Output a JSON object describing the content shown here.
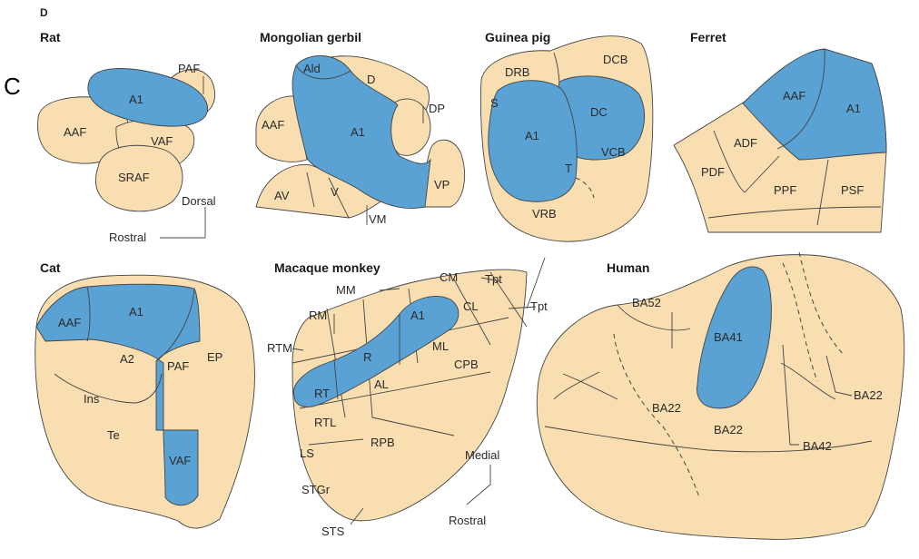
{
  "panel": {
    "letter": "C",
    "top_letter": "D"
  },
  "species": {
    "rat": {
      "title": "Rat",
      "labels": [
        "PAF",
        "A1",
        "AAF",
        "VAF",
        "SRAF"
      ],
      "axis": [
        "Dorsal",
        "Rostral"
      ]
    },
    "gerbil": {
      "title": "Mongolian gerbil",
      "labels": [
        "Ald",
        "D",
        "AAF",
        "A1",
        "DP",
        "VP",
        "AV",
        "V",
        "VM"
      ]
    },
    "guinea_pig": {
      "title": "Guinea pig",
      "labels": [
        "DCB",
        "DRB",
        "S",
        "DC",
        "A1",
        "VCB",
        "T",
        "VRB"
      ]
    },
    "ferret": {
      "title": "Ferret",
      "labels": [
        "AAF",
        "A1",
        "ADF",
        "PDF",
        "PPF",
        "PSF"
      ]
    },
    "cat": {
      "title": "Cat",
      "labels": [
        "AAF",
        "A1",
        "A2",
        "PAF",
        "EP",
        "Ins",
        "Te",
        "VAF"
      ]
    },
    "macaque": {
      "title": "Macaque monkey",
      "labels": [
        "MM",
        "CM",
        "Tpt",
        "Tpt",
        "RM",
        "A1",
        "CL",
        "RTM",
        "R",
        "ML",
        "CPB",
        "RT",
        "AL",
        "RTL",
        "RPB",
        "LS",
        "STGr",
        "STS"
      ],
      "axis": [
        "Medial",
        "Rostral"
      ]
    },
    "human": {
      "title": "Human",
      "labels": [
        "BA52",
        "BA41",
        "BA22",
        "BA22",
        "BA22",
        "BA42"
      ]
    }
  },
  "colors": {
    "core": "#5aa2d4",
    "belt": "#f8deb0",
    "line": "#444444"
  }
}
